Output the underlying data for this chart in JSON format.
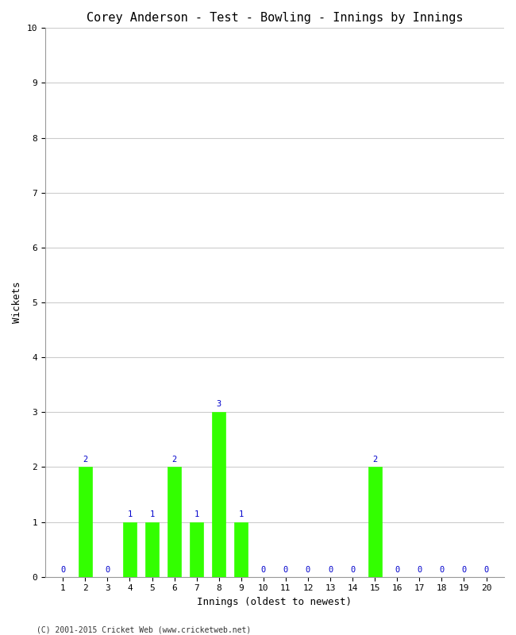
{
  "title": "Corey Anderson - Test - Bowling - Innings by Innings",
  "xlabel": "Innings (oldest to newest)",
  "ylabel": "Wickets",
  "innings": [
    1,
    2,
    3,
    4,
    5,
    6,
    7,
    8,
    9,
    10,
    11,
    12,
    13,
    14,
    15,
    16,
    17,
    18,
    19,
    20
  ],
  "wickets": [
    0,
    2,
    0,
    1,
    1,
    2,
    1,
    3,
    1,
    0,
    0,
    0,
    0,
    0,
    2,
    0,
    0,
    0,
    0,
    0
  ],
  "bar_color": "#33ff00",
  "label_color": "#0000cc",
  "background_color": "#ffffff",
  "plot_bg_color": "#ffffff",
  "grid_color": "#cccccc",
  "ylim": [
    0,
    10
  ],
  "yticks": [
    0,
    1,
    2,
    3,
    4,
    5,
    6,
    7,
    8,
    9,
    10
  ],
  "footer": "(C) 2001-2015 Cricket Web (www.cricketweb.net)",
  "title_fontsize": 11,
  "axis_label_fontsize": 9,
  "tick_fontsize": 8,
  "label_fontsize": 7.5,
  "footer_fontsize": 7
}
